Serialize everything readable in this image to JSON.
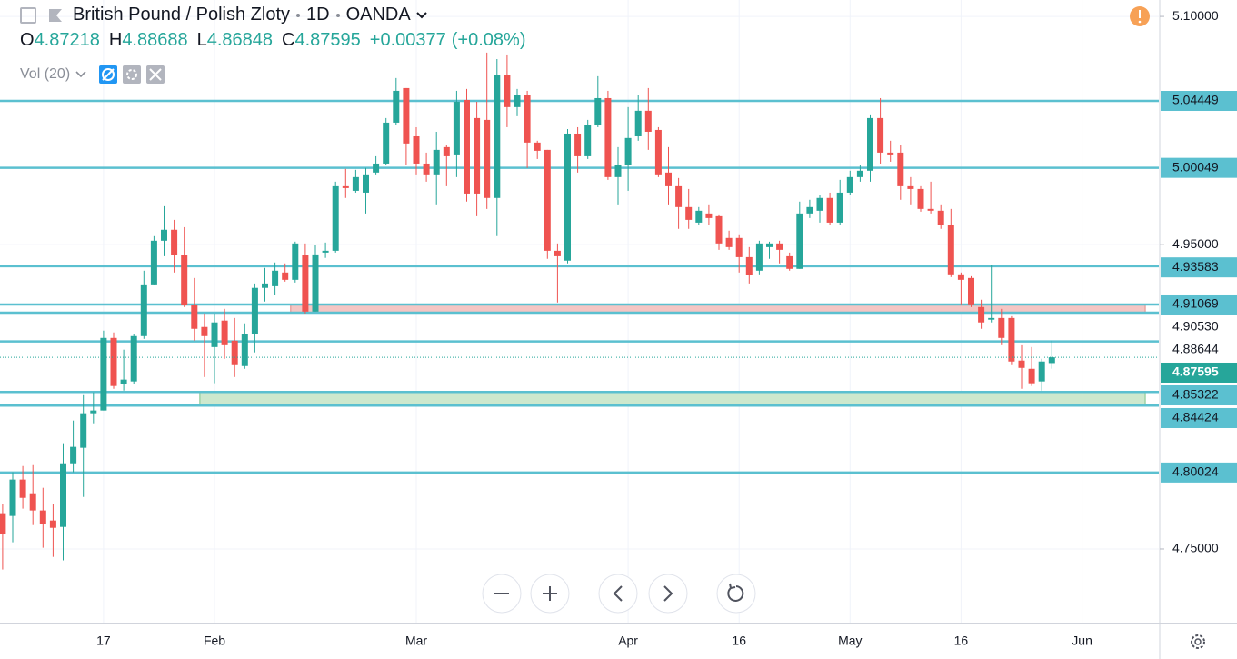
{
  "chart_data": {
    "type": "candlestick",
    "title": "British Pound / Polish Zloty",
    "interval": "1D",
    "source": "OANDA",
    "ohlc_labels": [
      "O",
      "H",
      "L",
      "C"
    ],
    "change": "+0.00377",
    "change_percent": "(+0.08%)",
    "indicator": "Vol (20)",
    "up_color": "#26a69a",
    "down_color": "#ef5350",
    "ylim": [
      4.7016,
      5.1108
    ],
    "yticks": [
      {
        "value": 5.1,
        "label": "5.10000"
      },
      {
        "value": 4.95,
        "label": "4.95000"
      },
      {
        "value": 4.75,
        "label": "4.75000"
      }
    ],
    "grid": true,
    "categories": [
      null,
      null,
      null,
      null,
      null,
      null,
      null,
      null,
      null,
      null,
      "17",
      null,
      null,
      null,
      null,
      null,
      null,
      null,
      null,
      null,
      null,
      "Feb",
      null,
      null,
      null,
      null,
      null,
      null,
      null,
      null,
      null,
      null,
      null,
      null,
      null,
      null,
      null,
      null,
      null,
      null,
      null,
      "Mar",
      null,
      null,
      null,
      null,
      null,
      null,
      null,
      null,
      null,
      null,
      null,
      null,
      null,
      null,
      null,
      null,
      null,
      null,
      null,
      null,
      "Apr",
      null,
      null,
      null,
      null,
      null,
      null,
      null,
      null,
      null,
      null,
      "16",
      null,
      null,
      null,
      null,
      null,
      null,
      null,
      null,
      null,
      null,
      "May",
      null,
      null,
      null,
      null,
      null,
      null,
      null,
      null,
      null,
      null,
      "16",
      null,
      null,
      null,
      null,
      null,
      null,
      null,
      null,
      null,
      null,
      null,
      "Jun"
    ],
    "open": [
      4.7735,
      4.7717,
      4.7956,
      4.7866,
      4.7753,
      4.7687,
      4.7645,
      4.8063,
      4.8165,
      4.8392,
      4.841,
      4.8887,
      4.8583,
      4.8601,
      4.8899,
      4.9239,
      4.9526,
      4.9598,
      4.943,
      4.9102,
      4.8959,
      4.8827,
      4.9001,
      4.8869,
      4.8702,
      4.8911,
      4.9216,
      4.9227,
      4.9317,
      4.9269,
      4.943,
      4.906,
      4.9448,
      4.946,
      4.9884,
      4.9854,
      4.9842,
      4.9974,
      5.0033,
      5.0302,
      5.0529,
      5.0212,
      5.0033,
      4.9962,
      5.0141,
      5.0093,
      5.0451,
      5.0332,
      5.032,
      4.9807,
      5.0618,
      5.0404,
      5.0481,
      5.0171,
      5.0123,
      4.946,
      4.9395,
      5.023,
      5.0081,
      5.0284,
      5.0463,
      4.9944,
      5.0021,
      5.0212,
      5.038,
      5.0254,
      4.9974,
      4.9884,
      4.9747,
      4.9645,
      4.9705,
      4.9687,
      4.9544,
      4.9544,
      4.9418,
      4.9329,
      4.9484,
      4.9508,
      4.9424,
      4.9341,
      4.9705,
      4.9723,
      4.9807,
      4.9645,
      4.9842,
      4.9944,
      4.9986,
      5.0332,
      5.0105,
      5.0105,
      4.9884,
      4.9866,
      4.9735,
      4.9723,
      4.9627,
      4.9305,
      4.9281,
      4.909,
      4.9007,
      4.9018,
      4.9018,
      4.8738,
      4.8684,
      4.8601,
      4.87218,
      null,
      null,
      null
    ],
    "high": [
      4.7795,
      4.8004,
      4.8045,
      4.8051,
      4.7902,
      4.7795,
      4.8195,
      4.8344,
      4.8511,
      4.8529,
      4.8935,
      4.8923,
      4.881,
      4.8911,
      4.9329,
      4.9556,
      4.9753,
      4.9663,
      4.9615,
      4.9281,
      4.9048,
      4.9048,
      4.9078,
      4.9018,
      4.8983,
      4.9245,
      4.9347,
      4.9383,
      4.9377,
      4.952,
      4.9508,
      4.9496,
      4.9514,
      4.9914,
      4.9998,
      4.9992,
      5.0004,
      5.0081,
      5.0332,
      5.0595,
      5.0529,
      5.0272,
      5.0105,
      5.0242,
      5.0153,
      5.0511,
      5.0523,
      5.0439,
      5.0762,
      5.072,
      5.075,
      5.0523,
      5.0511,
      5.0183,
      5.0123,
      4.9508,
      5.026,
      5.0272,
      5.032,
      5.0607,
      5.0511,
      5.0141,
      5.0404,
      5.0481,
      5.0529,
      5.0272,
      5.0141,
      4.9938,
      4.9866,
      4.9747,
      4.9765,
      4.9699,
      4.9592,
      4.9568,
      4.9484,
      4.9526,
      4.952,
      4.9526,
      4.9448,
      4.9783,
      4.9795,
      4.9824,
      4.9842,
      4.9926,
      4.9986,
      5.0021,
      5.0356,
      5.0463,
      5.0183,
      5.0153,
      4.9944,
      4.9884,
      4.9914,
      4.9765,
      4.9735,
      4.9317,
      4.9293,
      4.9138,
      4.9365,
      4.9078,
      4.903,
      4.8839,
      4.8827,
      4.875,
      4.88688,
      null,
      null,
      null
    ],
    "low": [
      4.7365,
      4.7544,
      4.7765,
      4.7657,
      4.7508,
      4.7448,
      4.7425,
      4.8004,
      4.7842,
      4.8326,
      4.841,
      4.8553,
      4.8541,
      4.8583,
      4.8881,
      4.9239,
      4.9424,
      4.9317,
      4.909,
      4.8869,
      4.863,
      4.8589,
      4.875,
      4.863,
      4.8684,
      4.8792,
      4.9126,
      4.9168,
      4.9257,
      4.9251,
      4.9048,
      4.906,
      4.9413,
      4.9448,
      4.9807,
      4.9842,
      4.9705,
      4.9962,
      5.0021,
      5.0284,
      5.0021,
      4.9962,
      4.9914,
      4.9765,
      4.9884,
      4.9944,
      4.9783,
      4.9687,
      4.9735,
      4.9556,
      5.0272,
      5.0344,
      5.0004,
      5.0063,
      4.9407,
      4.912,
      4.9377,
      4.9974,
      5.0063,
      5.0272,
      4.9926,
      4.9765,
      4.9854,
      5.0183,
      5.0123,
      4.9944,
      4.9765,
      4.9604,
      4.9604,
      4.9627,
      4.9627,
      4.9466,
      4.9466,
      4.9317,
      4.9245,
      4.9305,
      4.9407,
      4.9377,
      4.9329,
      4.9341,
      4.9675,
      4.9645,
      4.9627,
      4.9627,
      4.9824,
      4.9914,
      4.9914,
      5.0033,
      5.0045,
      4.9795,
      4.9765,
      4.9717,
      4.9705,
      4.9604,
      4.9287,
      4.9108,
      4.909,
      4.8947,
      4.8989,
      4.8839,
      4.8708,
      4.8553,
      4.8571,
      4.8541,
      4.86848,
      null,
      null,
      null
    ],
    "close": [
      4.7598,
      4.7956,
      4.7836,
      4.7753,
      4.7663,
      4.7639,
      4.8063,
      4.8171,
      4.8392,
      4.841,
      4.8887,
      4.8571,
      4.8613,
      4.8899,
      4.9239,
      4.9526,
      4.9598,
      4.943,
      4.9102,
      4.8947,
      4.8899,
      4.8989,
      4.8839,
      4.8708,
      4.8911,
      4.9216,
      4.9245,
      4.9329,
      4.9269,
      4.9508,
      4.906,
      4.9436,
      4.946,
      4.9884,
      4.9872,
      4.9944,
      4.9962,
      5.0033,
      5.0302,
      5.0511,
      5.0165,
      5.0033,
      4.9962,
      5.0123,
      5.0081,
      5.0439,
      4.9836,
      4.9836,
      4.9807,
      5.0618,
      5.0404,
      5.0481,
      5.0171,
      5.0117,
      4.946,
      4.9424,
      5.023,
      5.0081,
      5.0284,
      5.0463,
      4.9944,
      5.0021,
      5.0201,
      5.038,
      5.0242,
      4.9962,
      4.9884,
      4.9747,
      4.9663,
      4.9723,
      4.9675,
      4.9508,
      4.9484,
      4.9418,
      4.9299,
      4.9508,
      4.9508,
      4.9466,
      4.9341,
      4.9705,
      4.9747,
      4.9807,
      4.9645,
      4.9842,
      4.9944,
      4.9986,
      5.0332,
      5.0105,
      5.0093,
      4.9884,
      4.9866,
      4.9735,
      4.9723,
      4.9627,
      4.9305,
      4.9269,
      4.9108,
      4.8989,
      4.9018,
      4.8887,
      4.8732,
      4.869,
      4.8589,
      4.8732,
      4.87595,
      null,
      null,
      null
    ],
    "level_color": "#5bc0d0",
    "levels": [
      {
        "value": 5.04449,
        "label": "5.04449",
        "boxed": true
      },
      {
        "value": 5.00049,
        "label": "5.00049",
        "boxed": true
      },
      {
        "value": 4.93583,
        "label": "4.93583",
        "boxed": true
      },
      {
        "value": 4.91069,
        "label": "4.91069",
        "boxed": true
      },
      {
        "value": 4.9053,
        "label": "4.90530",
        "boxed": false
      },
      {
        "value": 4.88644,
        "label": "4.88644",
        "boxed": false
      },
      {
        "value": 4.85322,
        "label": "4.85322",
        "boxed": true
      },
      {
        "value": 4.84424,
        "label": "4.84424",
        "boxed": true
      },
      {
        "value": 4.80024,
        "label": "4.80024",
        "boxed": true
      }
    ],
    "zones": [
      {
        "from": 4.91069,
        "to": 4.9053,
        "start_index": 29,
        "color": "#f4c6c4",
        "border": "#e8a5a2"
      },
      {
        "from": 4.85322,
        "to": 4.84424,
        "start_index": 20,
        "color": "#cde8cd",
        "border": "#9ed3a6"
      }
    ]
  }
}
